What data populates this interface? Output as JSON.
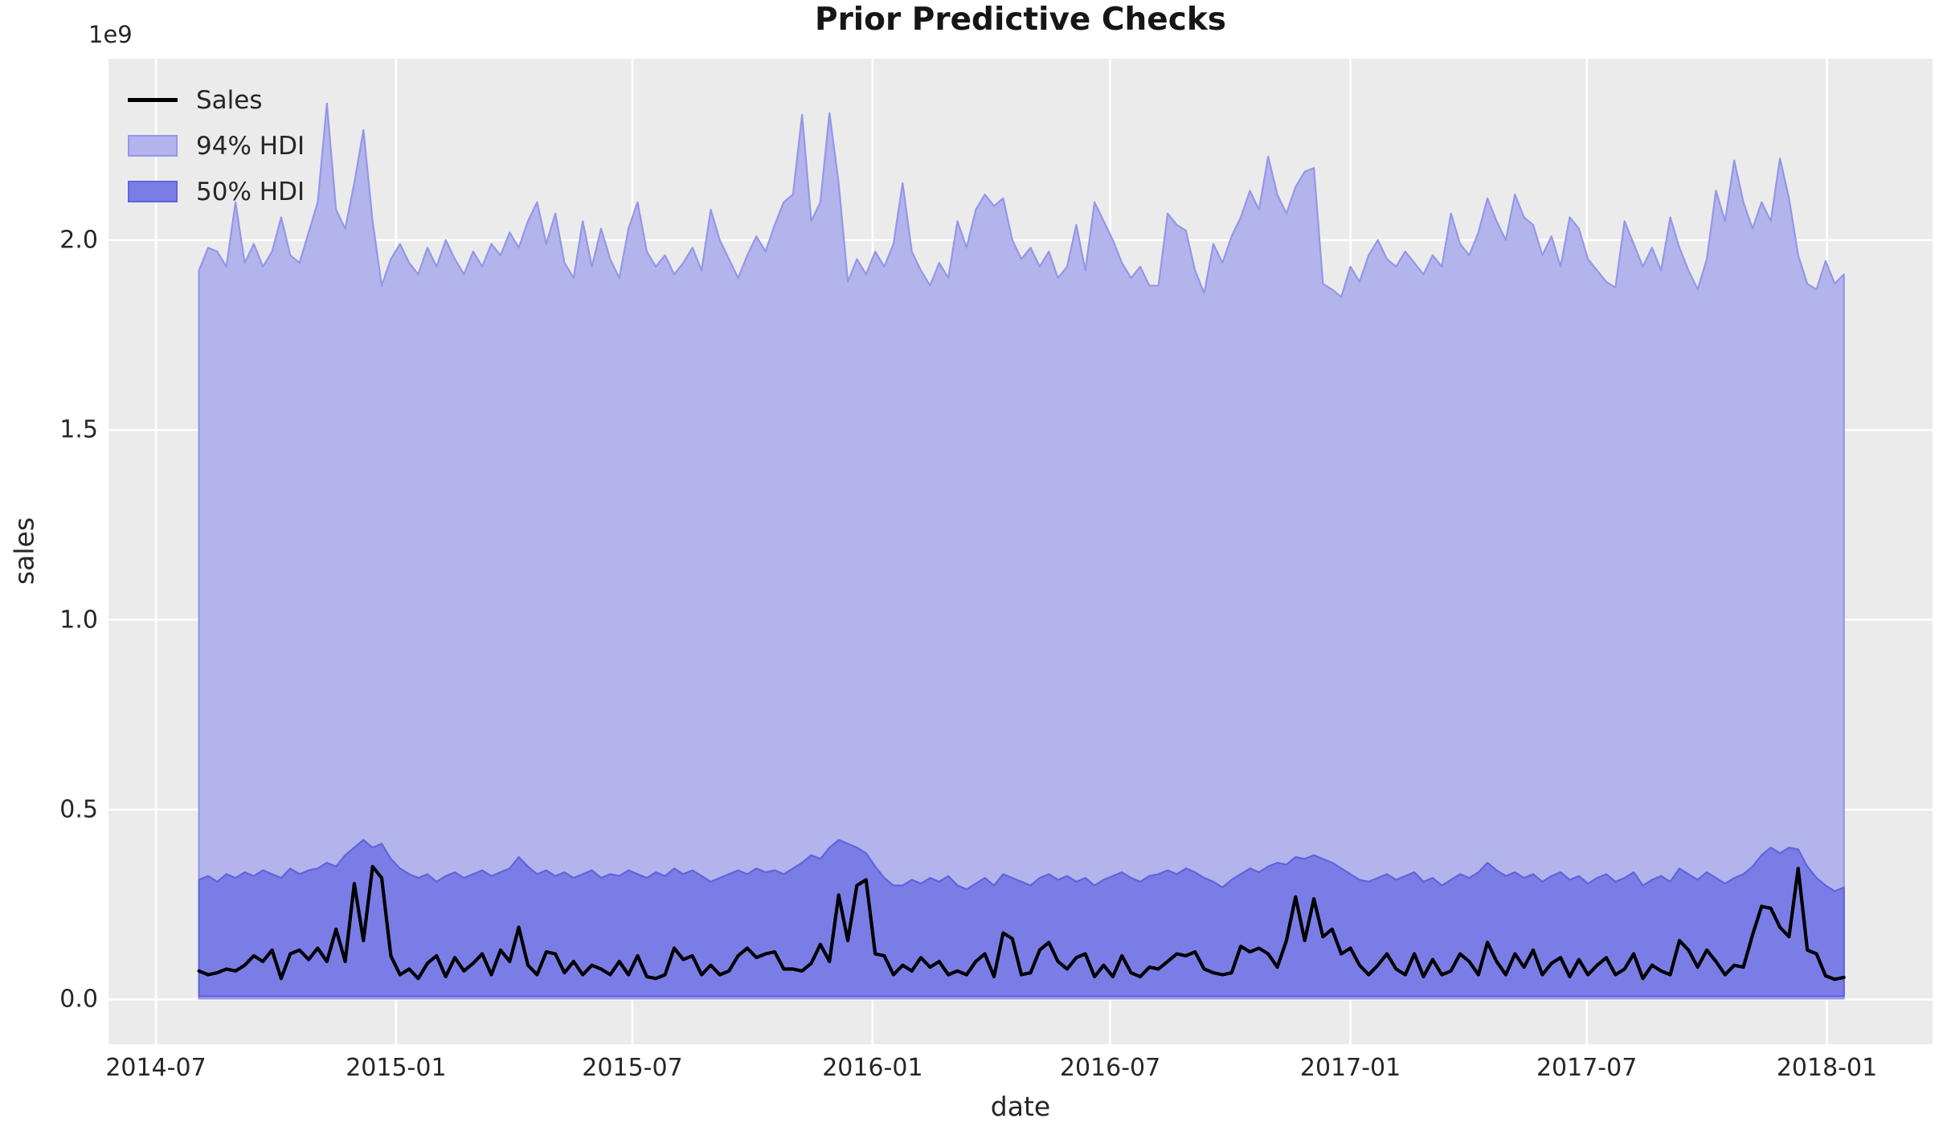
{
  "title": "Prior Predictive Checks",
  "axes_labels": {
    "xlabel": "date",
    "ylabel": "sales",
    "offset_text": "1e9"
  },
  "legend": {
    "items": [
      {
        "label": "Sales",
        "handle": "line"
      },
      {
        "label": "94% HDI",
        "handle": "patch-light"
      },
      {
        "label": "50% HDI",
        "handle": "patch-dark"
      }
    ]
  },
  "colors": {
    "figure_bg": "#ffffff",
    "axes_bg": "#ebebeb",
    "grid": "#ffffff",
    "text": "#262626",
    "sales_line": "#000000",
    "hdi94_fill": "#b3b4ec",
    "hdi94_edge": "#9496e8",
    "hdi50_fill": "#7b7de6",
    "hdi50_edge": "#6063dc"
  },
  "chart_data": {
    "type": "area",
    "title": "Prior Predictive Checks",
    "xlabel": "date",
    "ylabel": "sales",
    "y_offset_label": "1e9",
    "y_unit_multiplier": 1000000000,
    "x_start_date": "2014-08-03",
    "x_frequency": "weekly",
    "n_points": 181,
    "x_ticks": [
      {
        "label": "2014-07",
        "week": -4.71
      },
      {
        "label": "2015-01",
        "week": 21.57
      },
      {
        "label": "2015-07",
        "week": 47.43
      },
      {
        "label": "2016-01",
        "week": 73.71
      },
      {
        "label": "2016-07",
        "week": 99.71
      },
      {
        "label": "2017-01",
        "week": 126.0
      },
      {
        "label": "2017-07",
        "week": 151.86
      },
      {
        "label": "2018-01",
        "week": 178.14
      }
    ],
    "y_ticks": [
      0.0,
      0.5,
      1.0,
      1.5,
      2.0
    ],
    "xlim_weeks": [
      -9.9,
      189.7
    ],
    "ylim": [
      -0.118,
      2.478
    ],
    "grid": true,
    "legend_position": "upper-left",
    "series": [
      {
        "name": "Sales",
        "type": "line",
        "color": "#000000",
        "values": [
          0.075,
          0.065,
          0.07,
          0.08,
          0.075,
          0.09,
          0.115,
          0.1,
          0.13,
          0.055,
          0.12,
          0.13,
          0.105,
          0.135,
          0.1,
          0.185,
          0.1,
          0.305,
          0.155,
          0.35,
          0.32,
          0.115,
          0.065,
          0.08,
          0.055,
          0.095,
          0.115,
          0.06,
          0.11,
          0.075,
          0.095,
          0.12,
          0.065,
          0.13,
          0.1,
          0.19,
          0.09,
          0.065,
          0.125,
          0.12,
          0.07,
          0.1,
          0.065,
          0.09,
          0.08,
          0.065,
          0.1,
          0.065,
          0.115,
          0.06,
          0.055,
          0.065,
          0.135,
          0.105,
          0.115,
          0.065,
          0.09,
          0.065,
          0.075,
          0.115,
          0.135,
          0.11,
          0.12,
          0.125,
          0.08,
          0.08,
          0.075,
          0.095,
          0.145,
          0.1,
          0.275,
          0.155,
          0.3,
          0.315,
          0.12,
          0.115,
          0.065,
          0.09,
          0.075,
          0.11,
          0.085,
          0.1,
          0.065,
          0.075,
          0.065,
          0.1,
          0.12,
          0.06,
          0.175,
          0.16,
          0.065,
          0.07,
          0.13,
          0.15,
          0.1,
          0.08,
          0.11,
          0.12,
          0.06,
          0.09,
          0.06,
          0.115,
          0.07,
          0.06,
          0.085,
          0.08,
          0.1,
          0.12,
          0.115,
          0.125,
          0.08,
          0.07,
          0.065,
          0.07,
          0.14,
          0.125,
          0.135,
          0.12,
          0.085,
          0.155,
          0.27,
          0.155,
          0.265,
          0.165,
          0.185,
          0.12,
          0.135,
          0.09,
          0.065,
          0.09,
          0.12,
          0.08,
          0.065,
          0.12,
          0.06,
          0.105,
          0.065,
          0.075,
          0.12,
          0.1,
          0.065,
          0.15,
          0.1,
          0.065,
          0.12,
          0.085,
          0.13,
          0.065,
          0.095,
          0.11,
          0.06,
          0.105,
          0.065,
          0.09,
          0.11,
          0.065,
          0.08,
          0.12,
          0.055,
          0.09,
          0.075,
          0.065,
          0.155,
          0.13,
          0.085,
          0.13,
          0.1,
          0.065,
          0.09,
          0.085,
          0.17,
          0.245,
          0.24,
          0.19,
          0.165,
          0.345,
          0.13,
          0.12,
          0.062,
          0.053,
          0.058
        ]
      },
      {
        "name": "94% HDI",
        "type": "band",
        "fill": "#b3b4ec",
        "edge": "#9496e8",
        "lower_const": 0.002,
        "upper": [
          1.92,
          1.98,
          1.97,
          1.93,
          2.1,
          1.94,
          1.99,
          1.93,
          1.97,
          2.06,
          1.96,
          1.94,
          2.02,
          2.1,
          2.36,
          2.08,
          2.03,
          2.15,
          2.29,
          2.05,
          1.88,
          1.95,
          1.99,
          1.94,
          1.91,
          1.98,
          1.93,
          2.0,
          1.95,
          1.91,
          1.97,
          1.93,
          1.99,
          1.96,
          2.02,
          1.98,
          2.05,
          2.1,
          1.99,
          2.07,
          1.94,
          1.9,
          2.05,
          1.93,
          2.03,
          1.95,
          1.9,
          2.03,
          2.1,
          1.97,
          1.93,
          1.96,
          1.91,
          1.94,
          1.98,
          1.92,
          2.08,
          2.0,
          1.95,
          1.9,
          1.96,
          2.01,
          1.97,
          2.04,
          2.1,
          2.12,
          2.33,
          2.05,
          2.1,
          2.335,
          2.15,
          1.89,
          1.95,
          1.91,
          1.97,
          1.93,
          1.99,
          2.15,
          1.97,
          1.92,
          1.88,
          1.94,
          1.9,
          2.05,
          1.98,
          2.08,
          2.12,
          2.09,
          2.11,
          2.0,
          1.95,
          1.98,
          1.93,
          1.97,
          1.9,
          1.93,
          2.04,
          1.92,
          2.1,
          2.05,
          2.0,
          1.94,
          1.9,
          1.93,
          1.88,
          1.88,
          2.07,
          2.04,
          2.025,
          1.92,
          1.86,
          1.99,
          1.94,
          2.01,
          2.06,
          2.13,
          2.08,
          2.22,
          2.12,
          2.07,
          2.14,
          2.18,
          2.19,
          1.885,
          1.87,
          1.85,
          1.93,
          1.89,
          1.96,
          2.0,
          1.95,
          1.93,
          1.97,
          1.94,
          1.91,
          1.96,
          1.93,
          2.07,
          1.99,
          1.96,
          2.02,
          2.11,
          2.05,
          2.0,
          2.12,
          2.06,
          2.04,
          1.96,
          2.01,
          1.93,
          2.06,
          2.03,
          1.95,
          1.92,
          1.89,
          1.875,
          2.05,
          1.99,
          1.93,
          1.98,
          1.92,
          2.06,
          1.98,
          1.92,
          1.87,
          1.95,
          2.13,
          2.05,
          2.21,
          2.1,
          2.03,
          2.1,
          2.05,
          2.215,
          2.11,
          1.96,
          1.885,
          1.87,
          1.945,
          1.885,
          1.91
        ]
      },
      {
        "name": "50% HDI",
        "type": "band",
        "fill": "#7b7de6",
        "edge": "#6063dc",
        "lower_const": 0.008,
        "upper": [
          0.315,
          0.325,
          0.31,
          0.33,
          0.32,
          0.335,
          0.325,
          0.34,
          0.33,
          0.32,
          0.345,
          0.33,
          0.34,
          0.345,
          0.36,
          0.35,
          0.38,
          0.4,
          0.42,
          0.4,
          0.41,
          0.37,
          0.345,
          0.33,
          0.32,
          0.33,
          0.31,
          0.325,
          0.335,
          0.32,
          0.33,
          0.34,
          0.325,
          0.335,
          0.345,
          0.375,
          0.35,
          0.33,
          0.34,
          0.325,
          0.335,
          0.32,
          0.33,
          0.34,
          0.32,
          0.33,
          0.325,
          0.34,
          0.33,
          0.32,
          0.335,
          0.325,
          0.345,
          0.33,
          0.34,
          0.325,
          0.31,
          0.32,
          0.33,
          0.34,
          0.33,
          0.345,
          0.335,
          0.34,
          0.33,
          0.345,
          0.36,
          0.38,
          0.37,
          0.4,
          0.42,
          0.41,
          0.4,
          0.385,
          0.35,
          0.32,
          0.3,
          0.3,
          0.315,
          0.305,
          0.32,
          0.31,
          0.325,
          0.3,
          0.29,
          0.305,
          0.32,
          0.3,
          0.33,
          0.32,
          0.31,
          0.3,
          0.32,
          0.33,
          0.315,
          0.325,
          0.31,
          0.32,
          0.3,
          0.315,
          0.325,
          0.335,
          0.32,
          0.31,
          0.325,
          0.33,
          0.34,
          0.33,
          0.345,
          0.335,
          0.32,
          0.31,
          0.295,
          0.315,
          0.33,
          0.345,
          0.335,
          0.35,
          0.36,
          0.355,
          0.375,
          0.37,
          0.38,
          0.37,
          0.36,
          0.345,
          0.33,
          0.315,
          0.31,
          0.32,
          0.33,
          0.315,
          0.325,
          0.335,
          0.31,
          0.32,
          0.3,
          0.315,
          0.33,
          0.32,
          0.335,
          0.36,
          0.34,
          0.325,
          0.335,
          0.32,
          0.33,
          0.31,
          0.325,
          0.335,
          0.315,
          0.325,
          0.305,
          0.32,
          0.33,
          0.31,
          0.32,
          0.335,
          0.3,
          0.315,
          0.325,
          0.31,
          0.345,
          0.33,
          0.315,
          0.335,
          0.32,
          0.305,
          0.32,
          0.33,
          0.35,
          0.38,
          0.4,
          0.385,
          0.4,
          0.395,
          0.35,
          0.32,
          0.3,
          0.285,
          0.295
        ]
      }
    ]
  }
}
